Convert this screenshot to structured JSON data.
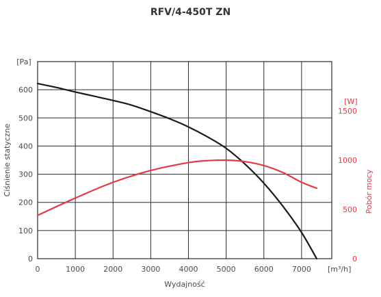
{
  "chart_data": {
    "type": "line",
    "title": "RFV/4-450T ZN",
    "xlabel": "Wydajność",
    "ylabel": "Ciśnienie statyczne",
    "y2label": "Pobór mocy",
    "x_unit": "[m³/h]",
    "y_unit": "[Pa]",
    "y2_unit": "[W]",
    "xlim": [
      0,
      7800
    ],
    "ylim": [
      0,
      700
    ],
    "y2lim": [
      0,
      2000
    ],
    "x_ticks": [
      0,
      1000,
      2000,
      3000,
      4000,
      5000,
      6000,
      7000
    ],
    "y_ticks": [
      0,
      100,
      200,
      300,
      400,
      500,
      600
    ],
    "y2_ticks": [
      0,
      500,
      1000,
      1500
    ],
    "grid": true,
    "series": [
      {
        "axis": "left",
        "color": "#1a1a1a",
        "x": [
          0,
          500,
          1000,
          1500,
          2000,
          2500,
          3000,
          3500,
          4000,
          4500,
          5000,
          5500,
          6000,
          6500,
          7000,
          7400
        ],
        "values": [
          622,
          608,
          592,
          577,
          562,
          545,
          522,
          497,
          468,
          433,
          392,
          336,
          268,
          187,
          93,
          0
        ]
      },
      {
        "axis": "right",
        "color": "#e63946",
        "x": [
          0,
          1000,
          2000,
          3000,
          4000,
          4500,
          5000,
          5500,
          6000,
          6500,
          7000,
          7400
        ],
        "values": [
          440,
          615,
          775,
          895,
          975,
          995,
          1000,
          985,
          945,
          875,
          775,
          715
        ]
      }
    ]
  }
}
